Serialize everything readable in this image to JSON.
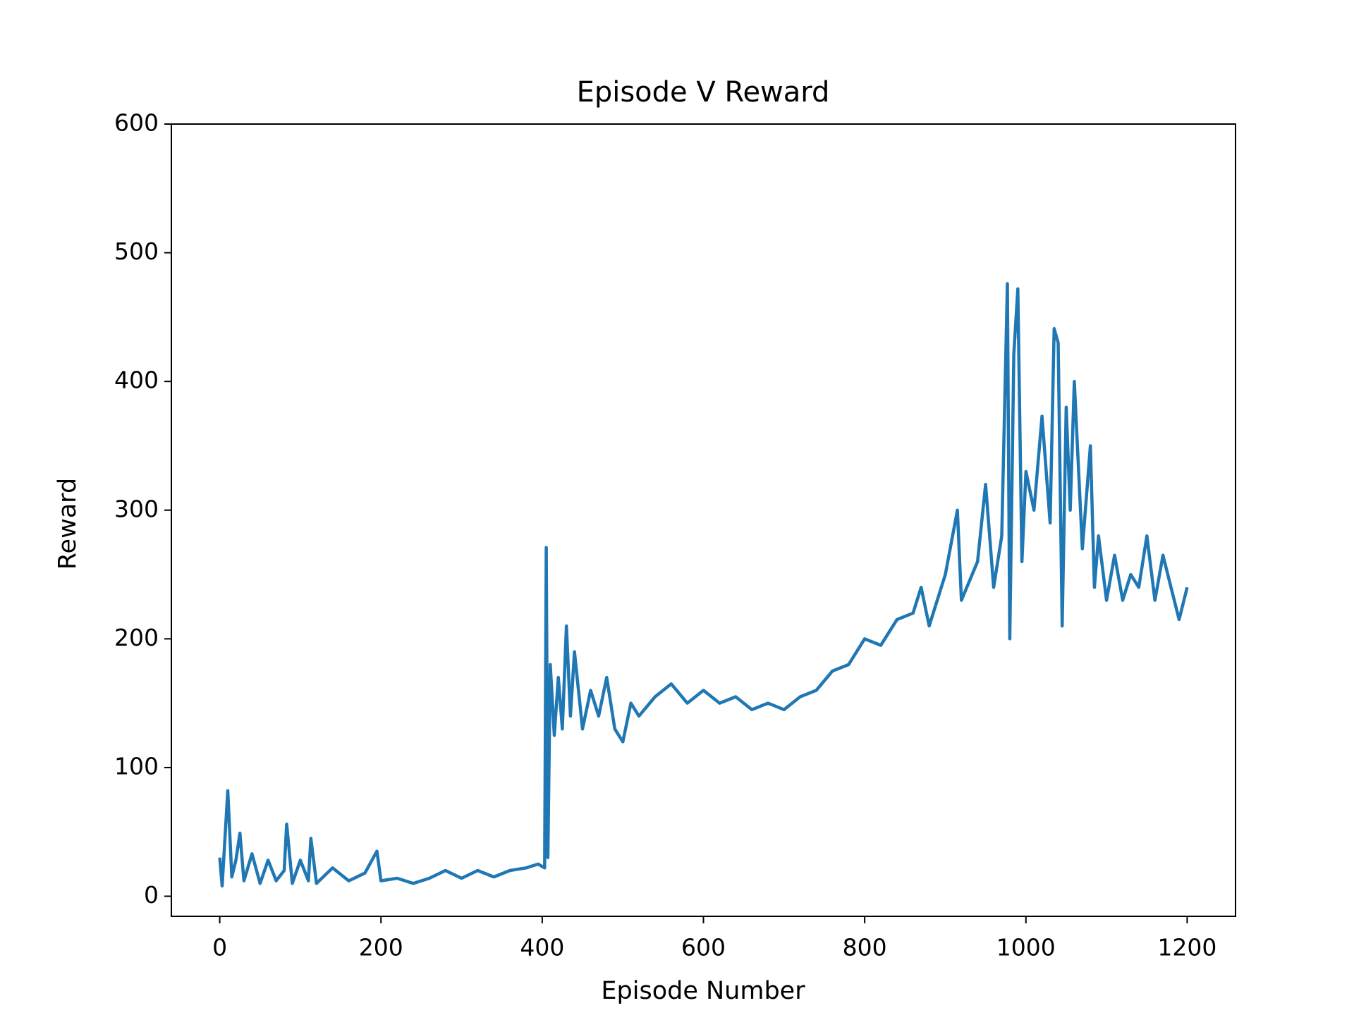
{
  "chart_data": {
    "type": "line",
    "title": "Episode V Reward",
    "x_label": "Episode Number",
    "y_label": "Reward",
    "color": "#1f77b4",
    "x": [
      0,
      3,
      10,
      15,
      20,
      25,
      30,
      40,
      50,
      60,
      70,
      80,
      83,
      90,
      100,
      110,
      113,
      120,
      140,
      160,
      180,
      195,
      200,
      220,
      240,
      260,
      280,
      300,
      320,
      340,
      360,
      380,
      395,
      403,
      405,
      407,
      410,
      415,
      420,
      425,
      430,
      435,
      440,
      450,
      460,
      470,
      480,
      490,
      500,
      510,
      520,
      540,
      560,
      580,
      600,
      620,
      640,
      660,
      680,
      700,
      720,
      740,
      760,
      780,
      800,
      820,
      840,
      860,
      870,
      880,
      900,
      915,
      920,
      940,
      950,
      960,
      970,
      977,
      980,
      985,
      990,
      995,
      1000,
      1010,
      1020,
      1030,
      1035,
      1040,
      1045,
      1050,
      1055,
      1060,
      1070,
      1080,
      1085,
      1090,
      1100,
      1110,
      1120,
      1130,
      1140,
      1150,
      1160,
      1170,
      1180,
      1190,
      1200
    ],
    "values": [
      30,
      8,
      82,
      15,
      28,
      49,
      12,
      33,
      10,
      28,
      12,
      20,
      56,
      10,
      28,
      12,
      45,
      10,
      22,
      12,
      18,
      35,
      12,
      14,
      10,
      14,
      20,
      14,
      20,
      15,
      20,
      22,
      25,
      22,
      271,
      30,
      180,
      125,
      170,
      130,
      210,
      140,
      190,
      130,
      160,
      140,
      170,
      130,
      120,
      150,
      140,
      155,
      165,
      150,
      160,
      150,
      155,
      145,
      150,
      145,
      155,
      160,
      175,
      180,
      200,
      195,
      215,
      220,
      240,
      210,
      250,
      300,
      230,
      260,
      320,
      240,
      280,
      476,
      200,
      421,
      472,
      260,
      330,
      300,
      373,
      290,
      441,
      430,
      210,
      380,
      300,
      400,
      270,
      350,
      240,
      280,
      230,
      265,
      230,
      250,
      240,
      280,
      230,
      265,
      240,
      215,
      240
    ],
    "xlim": [
      -60,
      1260
    ],
    "ylim": [
      -15.6,
      600
    ],
    "xticks": [
      0,
      200,
      400,
      600,
      800,
      1000,
      1200
    ],
    "yticks": [
      0,
      100,
      200,
      300,
      400,
      500,
      600
    ]
  }
}
